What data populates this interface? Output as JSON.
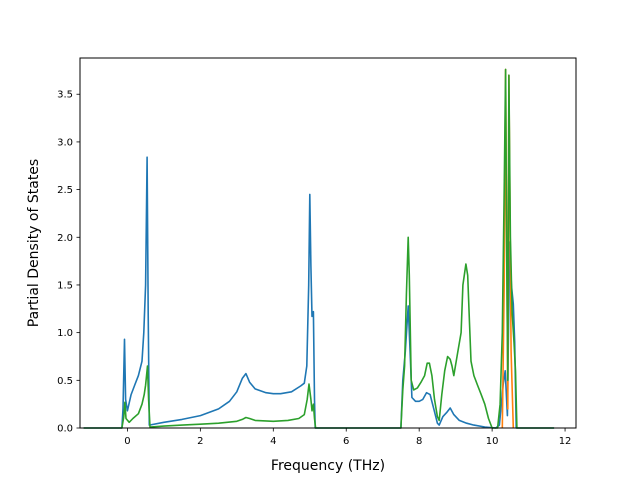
{
  "chart_data": {
    "type": "line",
    "title": "",
    "xlabel": "Frequency (THz)",
    "ylabel": "Partial Density of States",
    "xlim": [
      -1.3,
      12.3
    ],
    "ylim": [
      0,
      3.88
    ],
    "grid": false,
    "x_ticks": [
      0,
      2,
      4,
      6,
      8,
      10,
      12
    ],
    "x_tick_labels": [
      "0",
      "2",
      "4",
      "6",
      "8",
      "10",
      "12"
    ],
    "y_ticks": [
      0.0,
      0.5,
      1.0,
      1.5,
      2.0,
      2.5,
      3.0,
      3.5
    ],
    "y_tick_labels": [
      "0.0",
      "0.5",
      "1.0",
      "1.5",
      "2.0",
      "2.5",
      "3.0",
      "3.5"
    ],
    "series": [
      {
        "color": "#1f77b4",
        "points": [
          [
            -1.2,
            0.0
          ],
          [
            -0.15,
            0.0
          ],
          [
            -0.12,
            0.2
          ],
          [
            -0.08,
            0.93
          ],
          [
            -0.05,
            0.3
          ],
          [
            0.0,
            0.18
          ],
          [
            0.1,
            0.35
          ],
          [
            0.2,
            0.45
          ],
          [
            0.3,
            0.55
          ],
          [
            0.4,
            0.7
          ],
          [
            0.45,
            1.0
          ],
          [
            0.5,
            1.5
          ],
          [
            0.54,
            2.84
          ],
          [
            0.57,
            1.2
          ],
          [
            0.6,
            0.03
          ],
          [
            1.0,
            0.06
          ],
          [
            1.5,
            0.09
          ],
          [
            2.0,
            0.13
          ],
          [
            2.5,
            0.2
          ],
          [
            2.8,
            0.28
          ],
          [
            3.0,
            0.38
          ],
          [
            3.15,
            0.52
          ],
          [
            3.25,
            0.57
          ],
          [
            3.35,
            0.48
          ],
          [
            3.5,
            0.41
          ],
          [
            3.8,
            0.37
          ],
          [
            4.0,
            0.36
          ],
          [
            4.2,
            0.36
          ],
          [
            4.5,
            0.38
          ],
          [
            4.75,
            0.44
          ],
          [
            4.85,
            0.47
          ],
          [
            4.92,
            0.65
          ],
          [
            4.97,
            1.5
          ],
          [
            5.0,
            2.45
          ],
          [
            5.03,
            1.7
          ],
          [
            5.06,
            1.17
          ],
          [
            5.1,
            1.22
          ],
          [
            5.13,
            0.3
          ],
          [
            5.15,
            0.0
          ],
          [
            7.5,
            0.0
          ],
          [
            7.55,
            0.5
          ],
          [
            7.62,
            0.8
          ],
          [
            7.7,
            1.28
          ],
          [
            7.75,
            0.8
          ],
          [
            7.8,
            0.32
          ],
          [
            7.9,
            0.28
          ],
          [
            8.0,
            0.28
          ],
          [
            8.1,
            0.3
          ],
          [
            8.2,
            0.37
          ],
          [
            8.3,
            0.35
          ],
          [
            8.4,
            0.2
          ],
          [
            8.5,
            0.05
          ],
          [
            8.55,
            0.03
          ],
          [
            8.65,
            0.12
          ],
          [
            8.75,
            0.16
          ],
          [
            8.85,
            0.21
          ],
          [
            8.95,
            0.14
          ],
          [
            9.1,
            0.08
          ],
          [
            9.3,
            0.05
          ],
          [
            9.5,
            0.03
          ],
          [
            9.8,
            0.01
          ],
          [
            10.1,
            0.0
          ],
          [
            10.2,
            0.03
          ],
          [
            10.3,
            0.45
          ],
          [
            10.36,
            0.6
          ],
          [
            10.42,
            0.13
          ],
          [
            10.48,
            1.95
          ],
          [
            10.53,
            1.5
          ],
          [
            10.58,
            1.3
          ],
          [
            10.62,
            0.9
          ],
          [
            10.66,
            0.0
          ],
          [
            11.7,
            0.0
          ]
        ]
      },
      {
        "color": "#ff7f0e",
        "points": [
          [
            10.28,
            0.0
          ],
          [
            10.33,
            1.5
          ],
          [
            10.37,
            3.76
          ],
          [
            10.4,
            2.0
          ],
          [
            10.43,
            0.2
          ],
          [
            10.46,
            3.7
          ],
          [
            10.52,
            0.8
          ],
          [
            10.58,
            0.0
          ]
        ]
      },
      {
        "color": "#2ca02c",
        "points": [
          [
            -1.2,
            0.0
          ],
          [
            -0.15,
            0.0
          ],
          [
            -0.1,
            0.12
          ],
          [
            -0.07,
            0.27
          ],
          [
            -0.04,
            0.1
          ],
          [
            0.05,
            0.06
          ],
          [
            0.15,
            0.1
          ],
          [
            0.3,
            0.15
          ],
          [
            0.4,
            0.25
          ],
          [
            0.46,
            0.35
          ],
          [
            0.5,
            0.45
          ],
          [
            0.55,
            0.65
          ],
          [
            0.58,
            0.3
          ],
          [
            0.62,
            0.01
          ],
          [
            1.0,
            0.02
          ],
          [
            1.5,
            0.03
          ],
          [
            2.0,
            0.04
          ],
          [
            2.5,
            0.05
          ],
          [
            3.0,
            0.07
          ],
          [
            3.15,
            0.09
          ],
          [
            3.25,
            0.11
          ],
          [
            3.35,
            0.1
          ],
          [
            3.5,
            0.08
          ],
          [
            4.0,
            0.07
          ],
          [
            4.4,
            0.08
          ],
          [
            4.7,
            0.1
          ],
          [
            4.85,
            0.14
          ],
          [
            4.93,
            0.3
          ],
          [
            4.98,
            0.46
          ],
          [
            5.03,
            0.3
          ],
          [
            5.06,
            0.18
          ],
          [
            5.1,
            0.25
          ],
          [
            5.13,
            0.1
          ],
          [
            5.16,
            0.0
          ],
          [
            7.5,
            0.0
          ],
          [
            7.55,
            0.4
          ],
          [
            7.6,
            0.65
          ],
          [
            7.65,
            1.4
          ],
          [
            7.7,
            2.0
          ],
          [
            7.73,
            1.6
          ],
          [
            7.78,
            0.5
          ],
          [
            7.85,
            0.4
          ],
          [
            7.95,
            0.42
          ],
          [
            8.05,
            0.48
          ],
          [
            8.15,
            0.55
          ],
          [
            8.22,
            0.68
          ],
          [
            8.28,
            0.68
          ],
          [
            8.35,
            0.55
          ],
          [
            8.42,
            0.3
          ],
          [
            8.5,
            0.12
          ],
          [
            8.55,
            0.08
          ],
          [
            8.62,
            0.35
          ],
          [
            8.7,
            0.6
          ],
          [
            8.78,
            0.75
          ],
          [
            8.85,
            0.72
          ],
          [
            8.9,
            0.65
          ],
          [
            8.95,
            0.55
          ],
          [
            9.05,
            0.78
          ],
          [
            9.15,
            1.0
          ],
          [
            9.2,
            1.5
          ],
          [
            9.28,
            1.72
          ],
          [
            9.33,
            1.6
          ],
          [
            9.38,
            1.1
          ],
          [
            9.42,
            0.7
          ],
          [
            9.5,
            0.55
          ],
          [
            9.6,
            0.45
          ],
          [
            9.7,
            0.35
          ],
          [
            9.8,
            0.25
          ],
          [
            9.9,
            0.1
          ],
          [
            10.0,
            0.0
          ],
          [
            10.15,
            0.0
          ],
          [
            10.22,
            0.25
          ],
          [
            10.28,
            1.0
          ],
          [
            10.33,
            2.5
          ],
          [
            10.37,
            3.76
          ],
          [
            10.4,
            1.8
          ],
          [
            10.43,
            0.5
          ],
          [
            10.46,
            3.7
          ],
          [
            10.5,
            2.0
          ],
          [
            10.55,
            1.2
          ],
          [
            10.6,
            0.9
          ],
          [
            10.64,
            0.6
          ],
          [
            10.68,
            0.0
          ],
          [
            11.7,
            0.0
          ]
        ]
      }
    ]
  }
}
